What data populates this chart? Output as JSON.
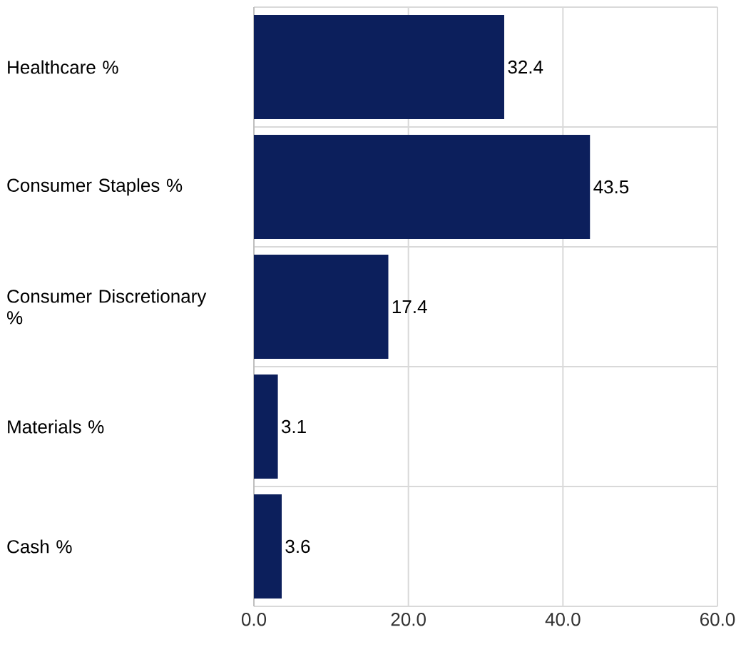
{
  "chart_data": {
    "type": "bar",
    "orientation": "horizontal",
    "categories": [
      "Healthcare %",
      "Consumer Staples %",
      "Consumer Discretionary %",
      "Materials %",
      "Cash %"
    ],
    "values": [
      32.4,
      43.5,
      17.4,
      3.1,
      3.6
    ],
    "color": "#0c1f5c",
    "xlim": [
      0,
      60
    ],
    "xticks": [
      {
        "value": 0,
        "label": "0.0"
      },
      {
        "value": 20,
        "label": "20.0"
      },
      {
        "value": 40,
        "label": "40.0"
      },
      {
        "value": 60,
        "label": "60.0"
      }
    ],
    "grid": true,
    "data_labels": true
  }
}
